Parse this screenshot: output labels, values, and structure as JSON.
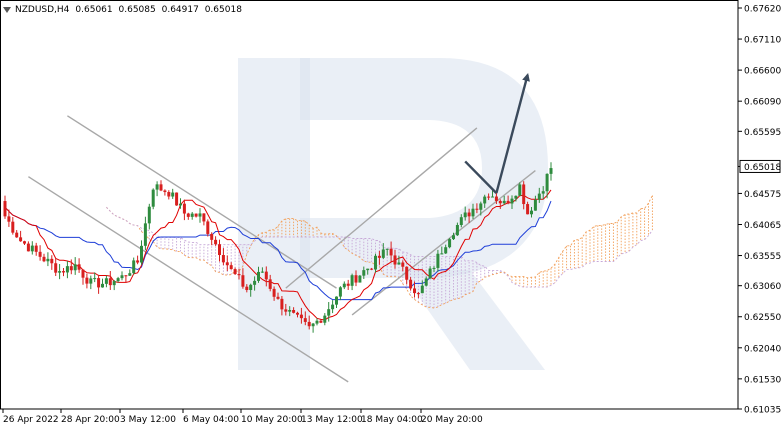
{
  "header": {
    "symbol": "NZDUSD,H4",
    "open": "0.65061",
    "high": "0.65085",
    "low": "0.64917",
    "close": "0.65018"
  },
  "chart_data": {
    "type": "candlestick",
    "symbol": "NZDUSD",
    "timeframe": "H4",
    "y_ticks": [
      "0.67620",
      "0.67110",
      "0.66600",
      "0.66090",
      "0.65595",
      "0.65018",
      "0.64575",
      "0.64065",
      "0.63555",
      "0.63060",
      "0.62550",
      "0.62040",
      "0.61530",
      "0.61035"
    ],
    "ylim": [
      0.61035,
      0.6762
    ],
    "x_ticks": [
      "26 Apr 2022",
      "28 Apr 20:00",
      "3 May 12:00",
      "6 May 04:00",
      "10 May 20:00",
      "13 May 12:00",
      "18 May 04:00",
      "20 May 20:00"
    ],
    "current_price": "0.65018",
    "colors": {
      "bull": "#2e8b3e",
      "bear": "#d81f1f",
      "tenkan": "#e00000",
      "kijun": "#1f3fd8",
      "span_a": "#f2a05a",
      "span_b": "#c7a8d8",
      "channel": "#a8a8a8",
      "arrow": "#3b4a5c",
      "watermark": "#d8e1ee"
    },
    "candles": [],
    "tenkan_sen": [],
    "kijun_sen": [],
    "senkou_a": [],
    "senkou_b": [],
    "channels": [
      {
        "name": "down-channel-upper",
        "from": [
          0.6585,
          16
        ],
        "to": [
          0.6302,
          85
        ]
      },
      {
        "name": "down-channel-lower",
        "from": [
          0.6485,
          6
        ],
        "to": [
          0.6148,
          88
        ]
      },
      {
        "name": "up-channel-upper",
        "from": [
          0.6302,
          72
        ],
        "to": [
          0.6565,
          121
        ]
      },
      {
        "name": "up-channel-lower",
        "from": [
          0.6258,
          89
        ],
        "to": [
          0.6495,
          136
        ]
      }
    ],
    "forecast": [
      {
        "name": "forecast-down",
        "from": [
          0.651,
          118
        ],
        "to": [
          0.6458,
          126
        ]
      },
      {
        "name": "forecast-up",
        "from": [
          0.6458,
          126
        ],
        "to": [
          0.6652,
          134
        ]
      }
    ]
  }
}
